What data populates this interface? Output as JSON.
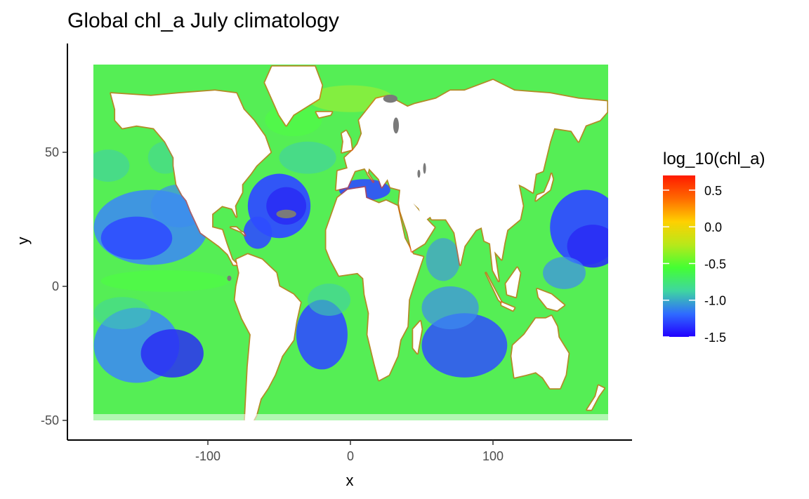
{
  "chart_data": {
    "type": "heatmap",
    "title": "Global chl_a July climatology",
    "xlabel": "x",
    "ylabel": "y",
    "xlim": [
      -180,
      180
    ],
    "ylim": [
      -50,
      75
    ],
    "x_ticks": [
      -100,
      0,
      100
    ],
    "x_tick_labels": [
      "-100",
      "0",
      "100"
    ],
    "y_ticks": [
      -50,
      0,
      50
    ],
    "y_tick_labels": [
      "-50",
      "0",
      "50"
    ],
    "legend": {
      "title": "log_10(chl_a)",
      "position": "right",
      "range": [
        -1.5,
        0.7
      ],
      "ticks": [
        0.5,
        0.0,
        -0.5,
        -1.0,
        -1.5
      ],
      "tick_labels": [
        "0.5",
        "0.0",
        "-0.5",
        "-1.0",
        "-1.5"
      ],
      "colors": [
        "#2200ff",
        "#2f6bff",
        "#3fd6a0",
        "#44ff33",
        "#b8e81a",
        "#ffd000",
        "#ff6a00",
        "#ff1a00"
      ]
    },
    "grid": false,
    "missing_color": "#7a7a7a",
    "land_color": "#ffffff"
  }
}
